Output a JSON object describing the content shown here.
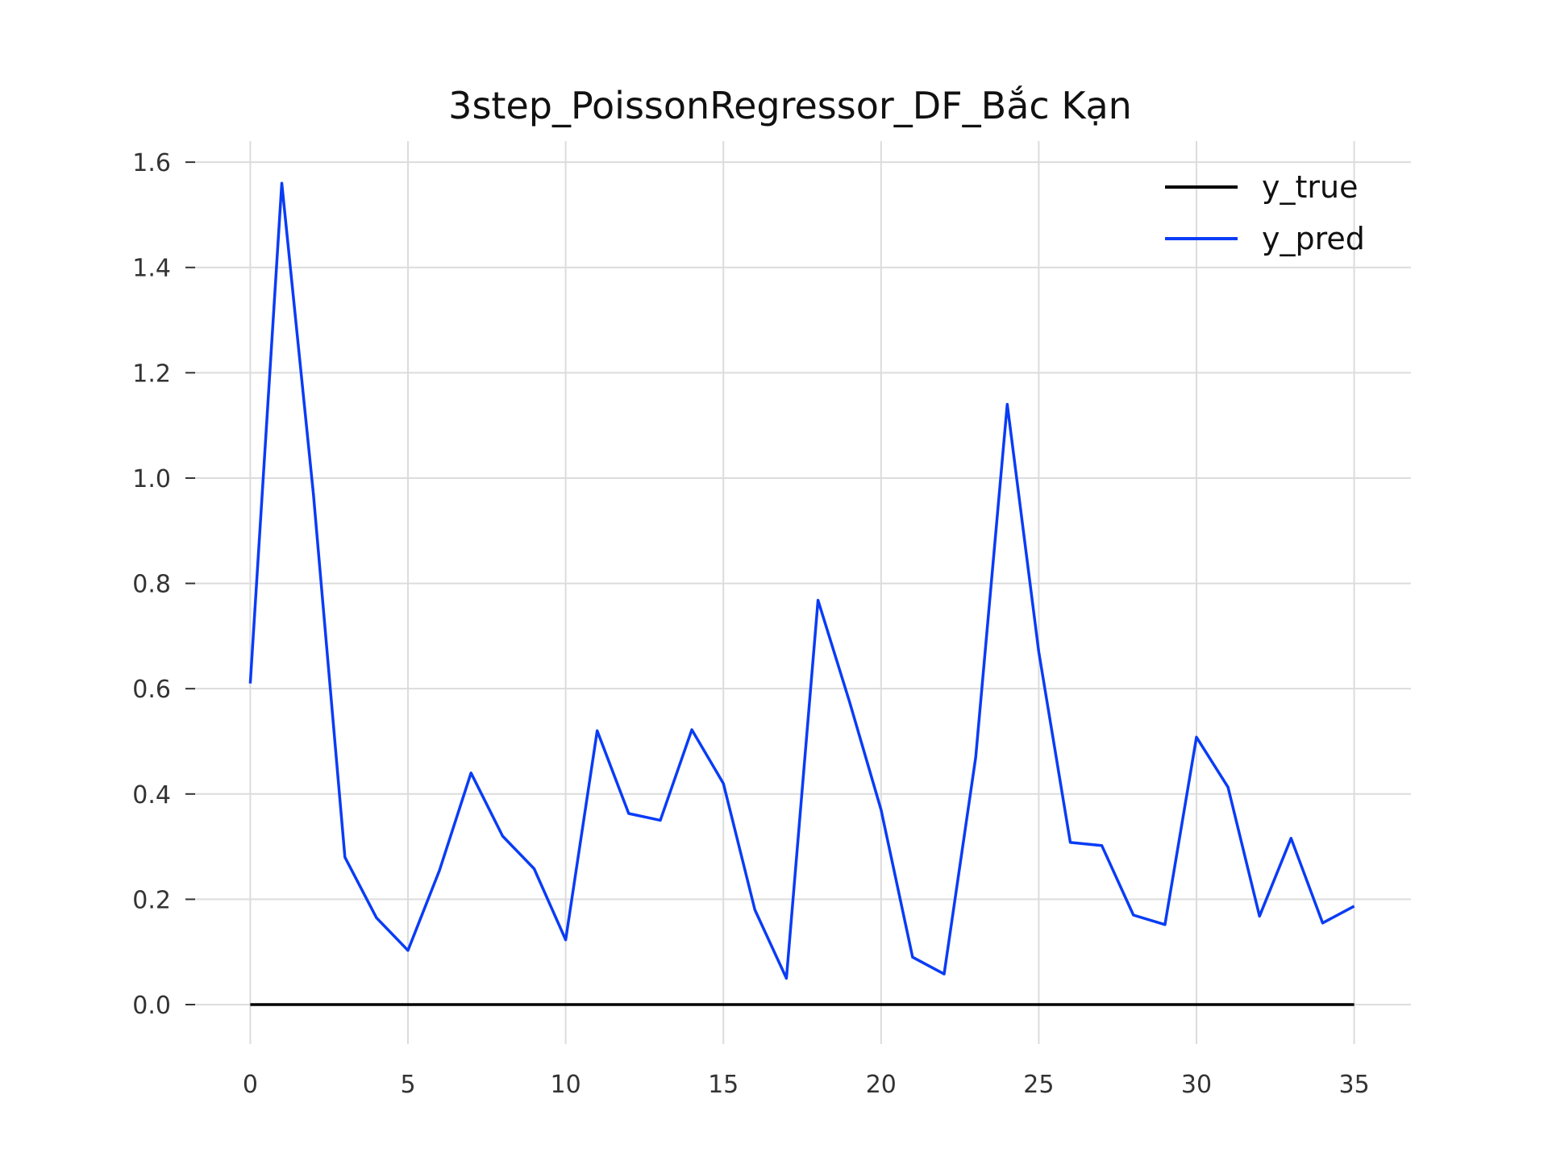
{
  "chart_data": {
    "type": "line",
    "title": "3step_PoissonRegressor_DF_Bắc Kạn",
    "xlabel": "",
    "ylabel": "",
    "xlim": [
      -1.8,
      36.8
    ],
    "ylim": [
      -0.075,
      1.64
    ],
    "x_ticks": [
      0,
      5,
      10,
      15,
      20,
      25,
      30,
      35
    ],
    "x_tick_labels": [
      "0",
      "5",
      "10",
      "15",
      "20",
      "25",
      "30",
      "35"
    ],
    "y_ticks": [
      0.0,
      0.2,
      0.4,
      0.6,
      0.8,
      1.0,
      1.2,
      1.4,
      1.6
    ],
    "y_tick_labels": [
      "0.0",
      "0.2",
      "0.4",
      "0.6",
      "0.8",
      "1.0",
      "1.2",
      "1.4",
      "1.6"
    ],
    "grid": true,
    "legend_position": "top-right",
    "x": [
      0,
      1,
      2,
      3,
      4,
      5,
      6,
      7,
      8,
      9,
      10,
      11,
      12,
      13,
      14,
      15,
      16,
      17,
      18,
      19,
      20,
      21,
      22,
      23,
      24,
      25,
      26,
      27,
      28,
      29,
      30,
      31,
      32,
      33,
      34,
      35
    ],
    "series": [
      {
        "name": "y_true",
        "color": "#000000",
        "values": [
          0,
          0,
          0,
          0,
          0,
          0,
          0,
          0,
          0,
          0,
          0,
          0,
          0,
          0,
          0,
          0,
          0,
          0,
          0,
          0,
          0,
          0,
          0,
          0,
          0,
          0,
          0,
          0,
          0,
          0,
          0,
          0,
          0,
          0,
          0,
          0
        ]
      },
      {
        "name": "y_pred",
        "color": "#0a3cf5",
        "values": [
          0.61,
          1.56,
          0.97,
          0.28,
          0.165,
          0.103,
          0.255,
          0.44,
          0.32,
          0.258,
          0.123,
          0.52,
          0.363,
          0.35,
          0.522,
          0.42,
          0.18,
          0.05,
          0.768,
          0.575,
          0.37,
          0.09,
          0.058,
          0.47,
          1.14,
          0.67,
          0.308,
          0.302,
          0.17,
          0.152,
          0.508,
          0.413,
          0.168,
          0.316,
          0.155,
          0.187
        ]
      }
    ]
  }
}
